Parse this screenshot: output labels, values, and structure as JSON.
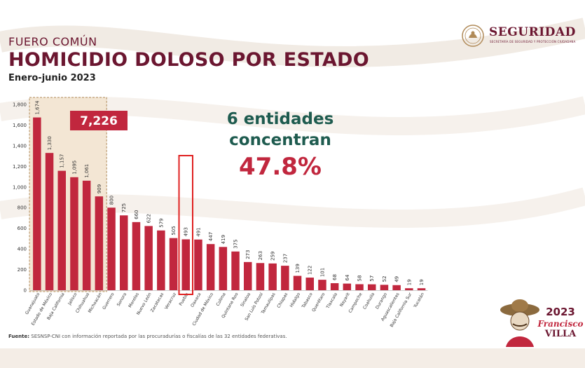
{
  "header": {
    "eyebrow": "FUERO COMÚN",
    "title": "HOMICIDIO DOLOSO POR ESTADO",
    "subtitle": "Enero-junio 2023"
  },
  "logo": {
    "name": "SEGURIDAD",
    "tagline": "SECRETARÍA DE SEGURIDAD Y PROTECCIÓN CIUDADANA"
  },
  "callout": {
    "line1": "6 entidades",
    "line2": "concentran",
    "percent": "47.8%"
  },
  "source": {
    "label": "Fuente:",
    "text": "SESNSP-CNI con información reportada por las procuradurías o fiscalías de las 32 entidades federativas."
  },
  "footer_logo": {
    "year": "2023",
    "name1": "Francisco",
    "name2": "VILLA"
  },
  "colors": {
    "bar": "#c1273e",
    "accent": "#6b1630",
    "callout_green": "#1e5b4f",
    "highlight_box": "#b08a58",
    "highlight_fill": "#f3e6d4",
    "marker": "#e02020"
  },
  "chart_data": {
    "type": "bar",
    "categories": [
      "Guanajuato",
      "Estado de México",
      "Baja California",
      "Jalisco",
      "Chihuahua",
      "Michoacán",
      "Guerrero",
      "Sonora",
      "Morelos",
      "Nuevo León",
      "Zacatecas",
      "Veracruz",
      "Puebla",
      "Oaxaca",
      "Ciudad de México",
      "Colima",
      "Quintana Roo",
      "Sinaloa",
      "San Luis Potosí",
      "Tamaulipas",
      "Chiapas",
      "Hidalgo",
      "Tabasco",
      "Querétaro",
      "Tlaxcala",
      "Nayarit",
      "Campeche",
      "Coahuila",
      "Durango",
      "Aguascalientes",
      "Baja California Sur",
      "Yucatán"
    ],
    "values": [
      1674,
      1330,
      1157,
      1095,
      1061,
      909,
      800,
      725,
      660,
      622,
      579,
      505,
      493,
      491,
      447,
      419,
      375,
      273,
      263,
      259,
      237,
      139,
      122,
      101,
      68,
      64,
      58,
      57,
      52,
      49,
      19,
      19
    ],
    "value_labels": [
      "1,674",
      "1,330",
      "1,157",
      "1,095",
      "1,061",
      "909",
      "800",
      "725",
      "660",
      "622",
      "579",
      "505",
      "493",
      "491",
      "447",
      "419",
      "375",
      "273",
      "263",
      "259",
      "237",
      "139",
      "122",
      "101",
      "68",
      "64",
      "58",
      "57",
      "52",
      "49",
      "19",
      "19"
    ],
    "yticks": [
      "0",
      "200",
      "400",
      "600",
      "800",
      "1,000",
      "1,200",
      "1,400",
      "1,600",
      "1,800"
    ],
    "ylim": [
      0,
      1800
    ],
    "grid": false,
    "highlight": {
      "start": 0,
      "end": 5,
      "total_label": "7,226"
    },
    "marked_index": 12
  }
}
